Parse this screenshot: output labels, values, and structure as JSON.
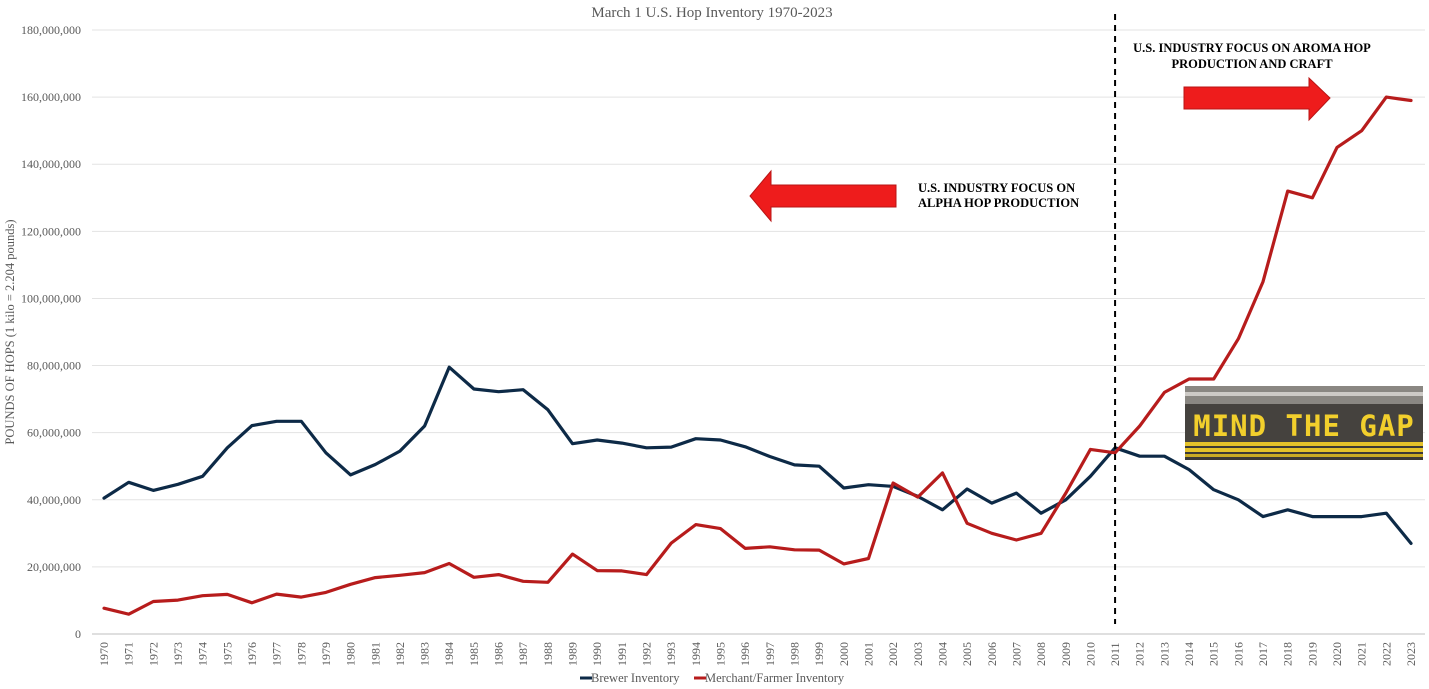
{
  "chart_data": {
    "type": "line",
    "title": "March 1 U.S. Hop Inventory 1970-2023",
    "xlabel": "",
    "ylabel": "POUNDS OF HOPS (1 kilo = 2.204 pounds)",
    "ylim": [
      0,
      180000000
    ],
    "yticks": [
      "0",
      "20,000,000",
      "40,000,000",
      "60,000,000",
      "80,000,000",
      "100,000,000",
      "120,000,000",
      "140,000,000",
      "160,000,000",
      "180,000,000"
    ],
    "x": [
      "1970",
      "1971",
      "1972",
      "1973",
      "1974",
      "1975",
      "1976",
      "1977",
      "1978",
      "1979",
      "1980",
      "1981",
      "1982",
      "1983",
      "1984",
      "1985",
      "1986",
      "1987",
      "1988",
      "1989",
      "1990",
      "1991",
      "1992",
      "1993",
      "1994",
      "1995",
      "1996",
      "1997",
      "1998",
      "1999",
      "2000",
      "2001",
      "2002",
      "2003",
      "2004",
      "2005",
      "2006",
      "2007",
      "2008",
      "2009",
      "2010",
      "2011",
      "2012",
      "2013",
      "2014",
      "2015",
      "2016",
      "2017",
      "2018",
      "2019",
      "2020",
      "2021",
      "2022",
      "2023"
    ],
    "series": [
      {
        "name": "Brewer Inventory",
        "color": "#0d2a47",
        "values": [
          40500000,
          45200000,
          42800000,
          44600000,
          47000000,
          55500000,
          62100000,
          63400000,
          63400000,
          54000000,
          47400000,
          50500000,
          54500000,
          62000000,
          79500000,
          73000000,
          72200000,
          72800000,
          66800000,
          56700000,
          57800000,
          56900000,
          55500000,
          55700000,
          58200000,
          57800000,
          55800000,
          52900000,
          50400000,
          50000000,
          43500000,
          44500000,
          44000000,
          41000000,
          37000000,
          43200000,
          39000000,
          42000000,
          36000000,
          40000000,
          47000000,
          55500000,
          53000000,
          53000000,
          49000000,
          43000000,
          40000000,
          35000000,
          37000000,
          35000000,
          35000000,
          35000000,
          36000000,
          27000000
        ]
      },
      {
        "name": "Merchant/Farmer Inventory",
        "color": "#b71c1c",
        "values": [
          7700000,
          5900000,
          9700000,
          10100000,
          11400000,
          11800000,
          9300000,
          11900000,
          11000000,
          12400000,
          14800000,
          16800000,
          17500000,
          18300000,
          21000000,
          16900000,
          17700000,
          15700000,
          15400000,
          23800000,
          18900000,
          18800000,
          17700000,
          27100000,
          32600000,
          31400000,
          25500000,
          26000000,
          25100000,
          25000000,
          20900000,
          22500000,
          45000000,
          40800000,
          48000000,
          33000000,
          30000000,
          28000000,
          30000000,
          42000000,
          55000000,
          54000000,
          62000000,
          72000000,
          76000000,
          76000000,
          88000000,
          105000000,
          132000000,
          130000000,
          145000000,
          150000000,
          160000000,
          159000000
        ]
      }
    ],
    "divider_year": "2011",
    "annotations": [
      {
        "text_line1": "U.S. INDUSTRY FOCUS ON",
        "text_line2": "ALPHA HOP PRODUCTION"
      },
      {
        "text_line1": "U.S. INDUSTRY FOCUS ON AROMA HOP",
        "text_line2": "PRODUCTION AND CRAFT"
      }
    ],
    "image_label": "MIND THE GAP",
    "grid": true,
    "legend_position": "bottom"
  }
}
